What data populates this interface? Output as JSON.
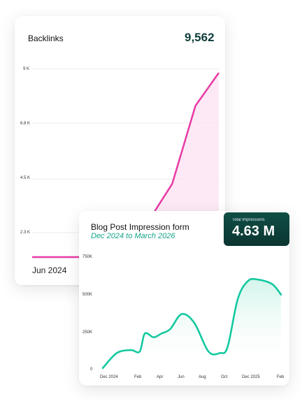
{
  "backlinks": {
    "title": "Backlinks",
    "total": "9,562",
    "y_ticks": [
      "9 K",
      "6.8 K",
      "4.5 K",
      "2.3 K"
    ],
    "x_start_label": "Jun 2024"
  },
  "blog_impressions": {
    "title": "Blog Post Impression form",
    "date_range": "Dec 2024 to March 2026",
    "badge_label": "Total Impressions",
    "badge_value": "4.63 M",
    "y_ticks": [
      "750K",
      "500K",
      "250K",
      "0"
    ],
    "x_ticks": [
      "Dec 2024",
      "Feb",
      "Apr",
      "Jun",
      "Aug",
      "Oct",
      "Dec 2025",
      "Feb"
    ]
  },
  "colors": {
    "pink": "#e83aa5",
    "teal": "#14c9a0",
    "dark_teal": "#0f3d3a"
  },
  "chart_data": [
    {
      "type": "line",
      "title": "Backlinks",
      "ylim": [
        0,
        9000
      ],
      "y_ticks": [
        9000,
        6800,
        4500,
        2300
      ],
      "x": [
        0,
        1,
        2,
        3,
        4,
        5,
        6,
        7,
        8
      ],
      "values": [
        1300,
        1300,
        1300,
        1900,
        2200,
        2800,
        4300,
        7500,
        8850
      ]
    },
    {
      "type": "area",
      "title": "Blog Post Impression form",
      "ylim": [
        0,
        750000
      ],
      "categories": [
        "Dec 2024",
        "Feb",
        "Apr",
        "Jun",
        "Aug",
        "Oct",
        "Dec 2025",
        "Feb"
      ],
      "x": [
        0,
        0.55,
        1.1,
        1.45,
        1.65,
        2.0,
        2.3,
        2.65,
        3.1,
        3.6,
        4.15,
        4.6,
        4.9,
        5.3,
        5.7,
        6.1,
        6.65,
        7.0
      ],
      "values": [
        10000,
        110000,
        130000,
        120000,
        240000,
        215000,
        240000,
        270000,
        370000,
        310000,
        120000,
        110000,
        150000,
        470000,
        590000,
        600000,
        570000,
        500000
      ]
    }
  ]
}
